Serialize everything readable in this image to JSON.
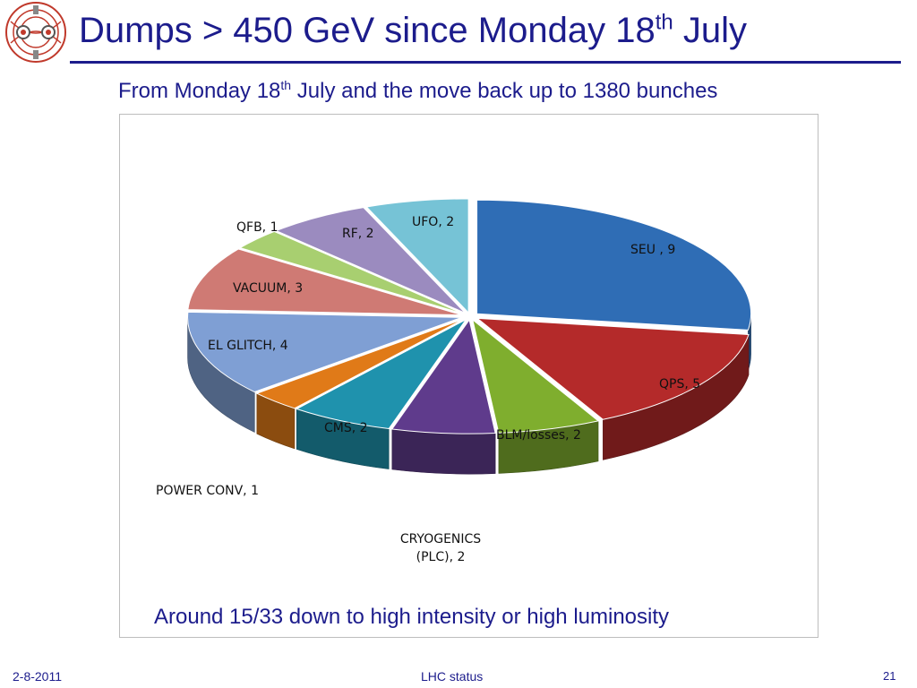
{
  "slide": {
    "title_main": "Dumps > 450 GeV since Monday 18",
    "title_sup": "th",
    "title_end": " July",
    "subtitle_main": "From Monday 18",
    "subtitle_sup": "th",
    "subtitle_end": " July and the move back up to 1380 bunches",
    "caption": "Around 15/33 down to high intensity or high luminosity",
    "footer_date": "2-8-2011",
    "footer_center": "LHC status",
    "page_number": "21"
  },
  "logo": {
    "icon": "lhc-magnet-cross-section-icon",
    "color": "#c0392b"
  },
  "chart_data": {
    "type": "pie",
    "title": "",
    "style": "3d-exploded",
    "total": 33,
    "slices": [
      {
        "label": "SEU , 9",
        "value": 9,
        "color": "#2f6db5"
      },
      {
        "label": "QPS, 5",
        "value": 5,
        "color": "#b42a2a"
      },
      {
        "label": "BLM/losses, 2",
        "value": 2,
        "color": "#7fae2e"
      },
      {
        "label": "CRYOGENICS (PLC), 2",
        "value": 2,
        "color": "#5f3b8c"
      },
      {
        "label": "CMS, 2",
        "value": 2,
        "color": "#1f92ad"
      },
      {
        "label": "POWER CONV, 1",
        "value": 1,
        "color": "#e07a18"
      },
      {
        "label": "EL GLITCH, 4",
        "value": 4,
        "color": "#7f9fd4"
      },
      {
        "label": "VACUUM, 3",
        "value": 3,
        "color": "#cf7a74"
      },
      {
        "label": "QFB, 1",
        "value": 1,
        "color": "#a8cf70"
      },
      {
        "label": "RF, 2",
        "value": 2,
        "color": "#9b8bbf"
      },
      {
        "label": "UFO, 2",
        "value": 2,
        "color": "#76c3d6"
      }
    ]
  }
}
